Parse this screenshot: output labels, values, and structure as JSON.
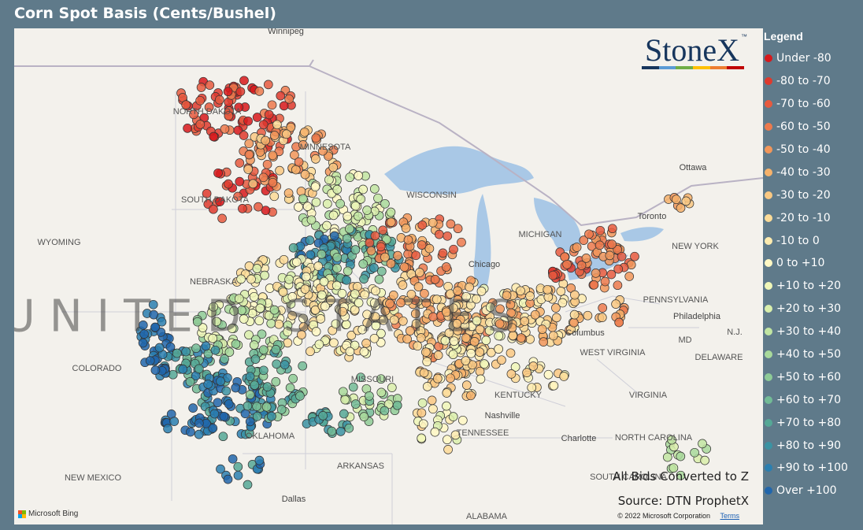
{
  "title": "Corn Spot Basis (Cents/Bushel)",
  "logo": {
    "text": "StoneX",
    "tm": "™",
    "bar_colors": [
      "#17365d",
      "#5b9bd5",
      "#70ad47",
      "#ffc000",
      "#ed7d31",
      "#c00000"
    ]
  },
  "legend": {
    "title": "Legend",
    "items": [
      {
        "label": "Under -80",
        "color": "#d7191c"
      },
      {
        "label": "-80 to -70",
        "color": "#de3a2e"
      },
      {
        "label": "-70 to -60",
        "color": "#e65a3f"
      },
      {
        "label": "-60 to -50",
        "color": "#ec7a4d"
      },
      {
        "label": "-50 to -40",
        "color": "#f1965a"
      },
      {
        "label": "-40 to -30",
        "color": "#f6b26b"
      },
      {
        "label": "-30 to -20",
        "color": "#f9c882"
      },
      {
        "label": "-20 to -10",
        "color": "#fbdb98"
      },
      {
        "label": "-10 to 0",
        "color": "#fdebaf"
      },
      {
        "label": "0 to +10",
        "color": "#fff8c4"
      },
      {
        "label": "+10 to +20",
        "color": "#f0f7b8"
      },
      {
        "label": "+20 to +30",
        "color": "#d9efac"
      },
      {
        "label": "+30 to +40",
        "color": "#c1e5a2"
      },
      {
        "label": "+40 to +50",
        "color": "#a8d99b"
      },
      {
        "label": "+50 to +60",
        "color": "#8ecb97"
      },
      {
        "label": "+60 to +70",
        "color": "#72bb96"
      },
      {
        "label": "+70 to +80",
        "color": "#55a896"
      },
      {
        "label": "+80 to +90",
        "color": "#3b93a3"
      },
      {
        "label": "+90 to +100",
        "color": "#2a7fb0"
      },
      {
        "label": "Over +100",
        "color": "#2166ac"
      }
    ]
  },
  "map": {
    "labels": [
      {
        "name": "Winnipeg",
        "type": "city"
      },
      {
        "name": "NORTH DAKOTA",
        "type": "state"
      },
      {
        "name": "MINNESOTA",
        "type": "state"
      },
      {
        "name": "SOUTH DAKOTA",
        "type": "state"
      },
      {
        "name": "WYOMING",
        "type": "state"
      },
      {
        "name": "NEBRASKA",
        "type": "state"
      },
      {
        "name": "COLORADO",
        "type": "state"
      },
      {
        "name": "MISSOURI",
        "type": "state"
      },
      {
        "name": "KENTUCKY",
        "type": "state"
      },
      {
        "name": "TENNESSEE",
        "type": "state"
      },
      {
        "name": "OKLAHOMA",
        "type": "state"
      },
      {
        "name": "ARKANSAS",
        "type": "state"
      },
      {
        "name": "NEW MEXICO",
        "type": "state"
      },
      {
        "name": "Dallas",
        "type": "city"
      },
      {
        "name": "ALABAMA",
        "type": "state"
      },
      {
        "name": "Nashville",
        "type": "city"
      },
      {
        "name": "Chicago",
        "type": "city"
      },
      {
        "name": "WISCONSIN",
        "type": "state"
      },
      {
        "name": "MICHIGAN",
        "type": "state"
      },
      {
        "name": "Columbus",
        "type": "city"
      },
      {
        "name": "WEST VIRGINIA",
        "type": "state"
      },
      {
        "name": "VIRGINIA",
        "type": "state"
      },
      {
        "name": "PENNSYLVANIA",
        "type": "state"
      },
      {
        "name": "NEW YORK",
        "type": "state"
      },
      {
        "name": "Philadelphia",
        "type": "city"
      },
      {
        "name": "MD",
        "type": "state"
      },
      {
        "name": "DELAWARE",
        "type": "state"
      },
      {
        "name": "N.J.",
        "type": "state"
      },
      {
        "name": "NORTH CAROLINA",
        "type": "state"
      },
      {
        "name": "SOUTH CAROLINA",
        "type": "state"
      },
      {
        "name": "Charlotte",
        "type": "city"
      },
      {
        "name": "Ottawa",
        "type": "city"
      },
      {
        "name": "Toronto",
        "type": "city"
      },
      {
        "name": "UNITED STATES",
        "type": "country"
      }
    ]
  },
  "notes": {
    "converted": "All Bids Converted to Z",
    "source": "Source: DTN ProphetX"
  },
  "attribution": {
    "bing": "Microsoft Bing",
    "copyright": "© 2022 Microsoft Corporation",
    "terms": "Terms"
  }
}
